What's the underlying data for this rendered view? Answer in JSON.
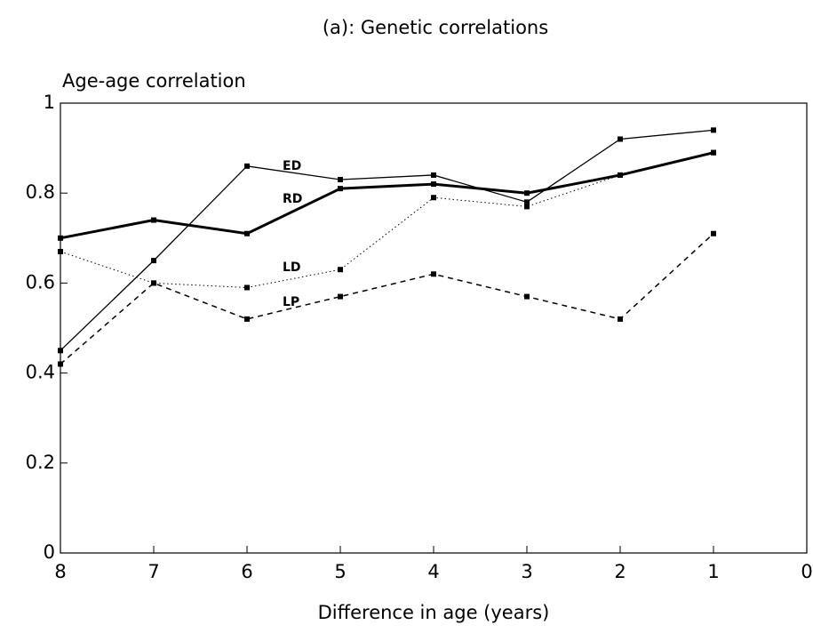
{
  "chart_data": {
    "type": "line",
    "title": "(a): Genetic correlations",
    "y_label": "Age-age correlation",
    "x_label": "Difference in age (years)",
    "x": [
      8,
      7,
      6,
      5,
      4,
      3,
      2,
      1
    ],
    "xlim": [
      8,
      0
    ],
    "xticks": [
      8,
      7,
      6,
      5,
      4,
      3,
      2,
      1,
      0
    ],
    "ylim": [
      0,
      1
    ],
    "yticks": [
      0,
      0.2,
      0.4,
      0.6,
      0.8,
      1
    ],
    "series": [
      {
        "name": "ED",
        "color": "#000000",
        "line_style": "solid",
        "line_width": 1.3,
        "values": [
          0.45,
          0.65,
          0.86,
          0.83,
          0.84,
          0.78,
          0.92,
          0.94
        ]
      },
      {
        "name": "RD",
        "color": "#000000",
        "line_style": "solid",
        "line_width": 3,
        "values": [
          0.7,
          0.74,
          0.71,
          0.81,
          0.82,
          0.8,
          0.84,
          0.89
        ]
      },
      {
        "name": "LD",
        "color": "#000000",
        "line_style": "dotted",
        "line_width": 1,
        "values": [
          0.67,
          0.6,
          0.59,
          0.63,
          0.79,
          0.77,
          0.84,
          0.89
        ]
      },
      {
        "name": "LP",
        "color": "#000000",
        "line_style": "dashed",
        "line_width": 1.5,
        "values": [
          0.42,
          0.6,
          0.52,
          0.57,
          0.62,
          0.57,
          0.52,
          0.71
        ]
      }
    ]
  }
}
